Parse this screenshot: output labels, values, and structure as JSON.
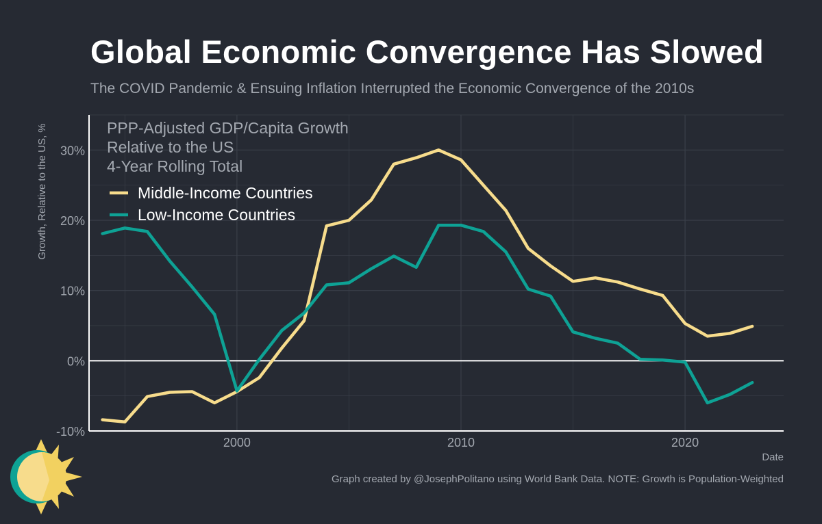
{
  "title": "Global Economic Convergence Has Slowed",
  "subtitle": "The COVID Pandemic & Ensuing Inflation Interrupted the Economic Convergence of the 2010s",
  "caption": "Graph created by @JosephPolitano using World Bank Data. NOTE: Growth is Population-Weighted",
  "colors": {
    "background": "#262a33",
    "middle_income": "#f7dc8c",
    "low_income": "#0ea295",
    "grid": "#3a3f49",
    "zero_line": "#ffffff",
    "text_muted": "#a3a8b0"
  },
  "chart_data": {
    "type": "line",
    "ylabel": "Growth, Relative to the US, %",
    "xlabel": "Date",
    "annotation": [
      "PPP-Adjusted GDP/Capita Growth",
      "Relative to the US",
      "4-Year Rolling Total"
    ],
    "xlim": [
      1993.4,
      2024.4
    ],
    "ylim": [
      -10,
      35
    ],
    "x_ticks": [
      2000,
      2010,
      2020
    ],
    "x_tick_labels": [
      "2000",
      "2010",
      "2020"
    ],
    "y_ticks": [
      -10,
      0,
      10,
      20,
      30
    ],
    "y_tick_labels": [
      "-10%",
      "0%",
      "10%",
      "20%",
      "30%"
    ],
    "grid": true,
    "legend_position": "top-left",
    "x": [
      1994,
      1995,
      1996,
      1997,
      1998,
      1999,
      2000,
      2001,
      2002,
      2003,
      2004,
      2005,
      2006,
      2007,
      2008,
      2009,
      2010,
      2011,
      2012,
      2013,
      2014,
      2015,
      2016,
      2017,
      2018,
      2019,
      2020,
      2021,
      2022,
      2023
    ],
    "series": [
      {
        "name": "Middle-Income Countries",
        "color_key": "middle_income",
        "values": [
          -8.4,
          -8.7,
          -5.1,
          -4.5,
          -4.4,
          -6.0,
          -4.4,
          -2.4,
          1.8,
          5.7,
          19.2,
          20.0,
          22.9,
          28.0,
          28.9,
          30.0,
          28.6,
          25.0,
          21.4,
          16.0,
          13.5,
          11.3,
          11.8,
          11.2,
          10.2,
          9.3,
          5.3,
          3.5,
          3.9,
          4.9
        ]
      },
      {
        "name": "Low-Income Countries",
        "color_key": "low_income",
        "values": [
          18.1,
          18.9,
          18.4,
          14.2,
          10.5,
          6.6,
          -4.3,
          0.2,
          4.3,
          6.8,
          10.8,
          11.1,
          13.1,
          14.9,
          13.3,
          19.3,
          19.3,
          18.4,
          15.5,
          10.2,
          9.2,
          4.1,
          3.2,
          2.5,
          0.2,
          0.1,
          -0.2,
          -6.0,
          -4.8,
          -3.1
        ]
      }
    ]
  }
}
